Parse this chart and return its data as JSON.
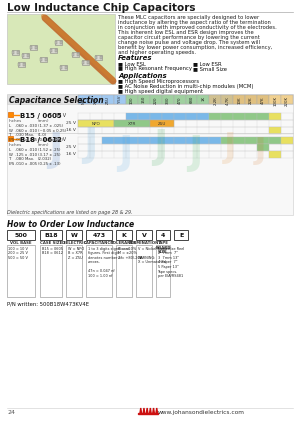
{
  "title": "Low Inductance Chip Capacitors",
  "bg_color": "#ffffff",
  "page_number": "24",
  "website": "www.johansondielectrics.com",
  "col_labels": [
    "NPO",
    "X7R",
    "Z5U",
    "Y5V",
    "100",
    "150",
    "220",
    "330",
    "470",
    "680",
    "1K",
    "2.2K",
    "4.7K",
    "10K",
    "22K",
    "47K",
    "100K",
    "220K"
  ],
  "series1_name": "B15 / 0605",
  "series2_name": "B18 / 0612",
  "order_boxes": [
    "500",
    "B18",
    "W",
    "473",
    "K",
    "V",
    "4",
    "E"
  ],
  "pn_example": "P/N written: 500B18W473KV4E"
}
